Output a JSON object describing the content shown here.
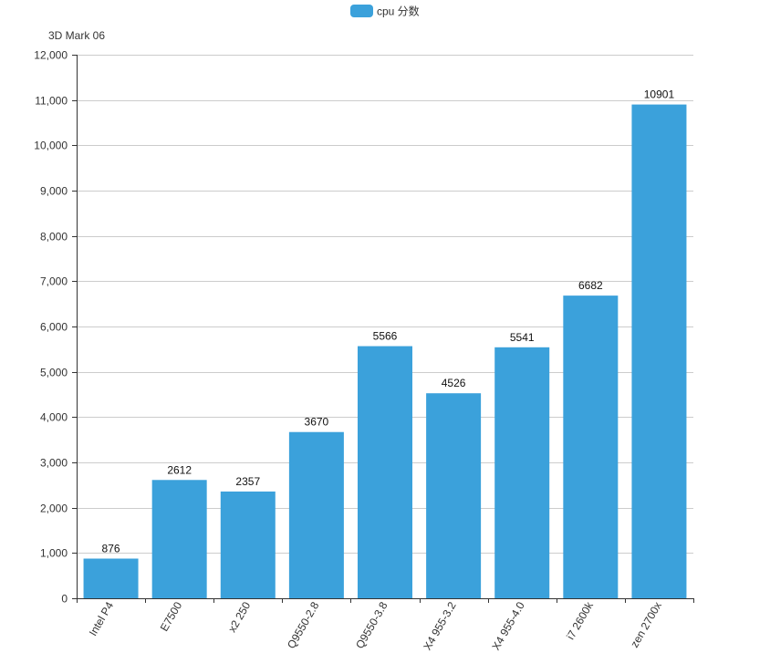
{
  "chart_data": {
    "type": "bar",
    "ylabel": "3D Mark 06",
    "categories": [
      "Intel P4",
      "E7500",
      "x2 250",
      "Q9550-2.8",
      "Q9550-3.8",
      "X4 955-3.2",
      "X4 955-4.0",
      "i7 2600k",
      "zen 2700x"
    ],
    "series": [
      {
        "name": "cpu 分数",
        "color": "#3ba1db",
        "values": [
          876,
          2612,
          2357,
          3670,
          5566,
          4526,
          5541,
          6682,
          10901
        ]
      }
    ],
    "ylim": [
      0,
      12000
    ],
    "yticks": [
      0,
      1000,
      2000,
      3000,
      4000,
      5000,
      6000,
      7000,
      8000,
      9000,
      10000,
      11000,
      12000
    ],
    "ytick_labels": [
      "0",
      "1,000",
      "2,000",
      "3,000",
      "4,000",
      "5,000",
      "6,000",
      "7,000",
      "8,000",
      "9,000",
      "10,000",
      "11,000",
      "12,000"
    ],
    "grid": true,
    "data_labels": true,
    "legend_position": "top-center"
  }
}
